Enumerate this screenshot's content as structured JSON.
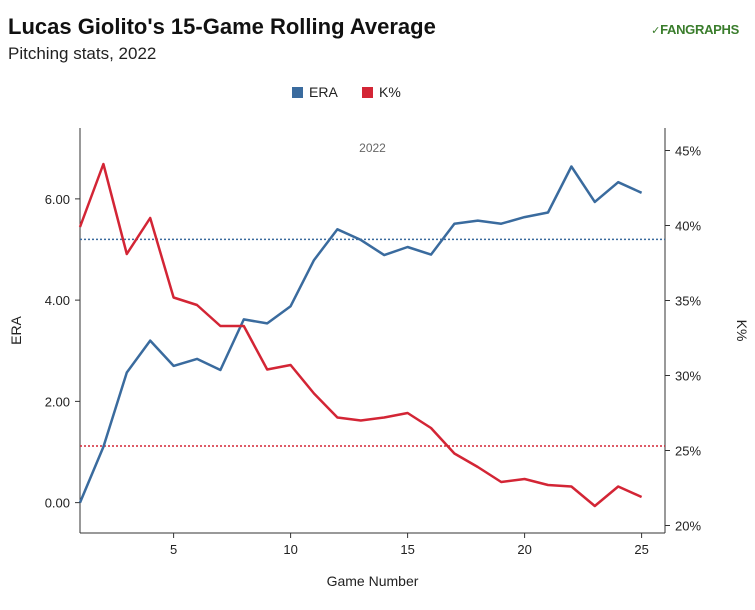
{
  "header": {
    "title": "Lucas Giolito's 15-Game Rolling Average",
    "subtitle": "Pitching stats, 2022",
    "logo_text": "FANGRAPHS"
  },
  "chart_data": {
    "type": "line",
    "panel_label": "2022",
    "xlabel": "Game Number",
    "x": [
      1,
      2,
      3,
      4,
      5,
      6,
      7,
      8,
      9,
      10,
      11,
      12,
      13,
      14,
      15,
      16,
      17,
      18,
      19,
      20,
      21,
      22,
      23,
      24,
      25
    ],
    "xlim": [
      1,
      26
    ],
    "xticks": [
      5,
      10,
      15,
      20,
      25
    ],
    "series": [
      {
        "name": "ERA",
        "axis": "left",
        "color": "#3a6b9e",
        "values": [
          0.0,
          1.1,
          2.57,
          3.2,
          2.7,
          2.84,
          2.62,
          3.62,
          3.54,
          3.88,
          4.79,
          5.4,
          5.19,
          4.89,
          5.05,
          4.9,
          5.51,
          5.57,
          5.51,
          5.64,
          5.73,
          6.64,
          5.94,
          6.33,
          6.12
        ],
        "reference": 5.2
      },
      {
        "name": "K%",
        "axis": "right",
        "color": "#d32535",
        "values": [
          39.9,
          44.1,
          38.1,
          40.5,
          35.2,
          34.7,
          33.3,
          33.3,
          30.4,
          30.7,
          28.8,
          27.2,
          27.0,
          27.2,
          27.5,
          26.5,
          24.8,
          23.9,
          22.9,
          23.1,
          22.7,
          22.6,
          21.3,
          22.6,
          21.9
        ],
        "reference": 25.3
      }
    ],
    "y_left": {
      "label": "ERA",
      "lim": [
        -0.6,
        7.4
      ],
      "ticks": [
        0,
        2,
        4,
        6
      ],
      "tick_labels": [
        "0.00",
        "2.00",
        "4.00",
        "6.00"
      ]
    },
    "y_right": {
      "label": "K%",
      "lim": [
        19.5,
        46.5
      ],
      "ticks": [
        20,
        25,
        30,
        35,
        40,
        45
      ],
      "tick_labels": [
        "20%",
        "25%",
        "30%",
        "35%",
        "40%",
        "45%"
      ]
    },
    "legend": {
      "position": "top-center",
      "entries": [
        "ERA",
        "K%"
      ]
    },
    "grid": false
  }
}
